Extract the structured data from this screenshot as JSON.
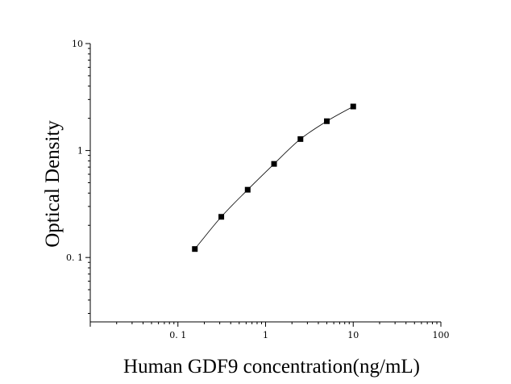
{
  "chart_data": {
    "type": "scatter",
    "xlabel": "Human GDF9 concentration(ng/mL)",
    "ylabel": "Optical Density",
    "x_scale": "log",
    "y_scale": "log",
    "xlim": [
      0.01,
      100
    ],
    "ylim": [
      0.025,
      10
    ],
    "x_ticks": [
      {
        "value": 0.1,
        "label": "0. 1"
      },
      {
        "value": 1,
        "label": "1"
      },
      {
        "value": 10,
        "label": "10"
      },
      {
        "value": 100,
        "label": "100"
      }
    ],
    "y_ticks": [
      {
        "value": 0.1,
        "label": "0. 1"
      },
      {
        "value": 1,
        "label": "1"
      },
      {
        "value": 10,
        "label": "10"
      }
    ],
    "grid": false,
    "legend": "none",
    "fit_curve": true,
    "marker": "square",
    "color": "#000000",
    "points": [
      {
        "x": 0.156,
        "y": 0.12
      },
      {
        "x": 0.3125,
        "y": 0.24
      },
      {
        "x": 0.625,
        "y": 0.43
      },
      {
        "x": 1.25,
        "y": 0.75
      },
      {
        "x": 2.5,
        "y": 1.28
      },
      {
        "x": 5,
        "y": 1.88
      },
      {
        "x": 10,
        "y": 2.58
      }
    ]
  }
}
